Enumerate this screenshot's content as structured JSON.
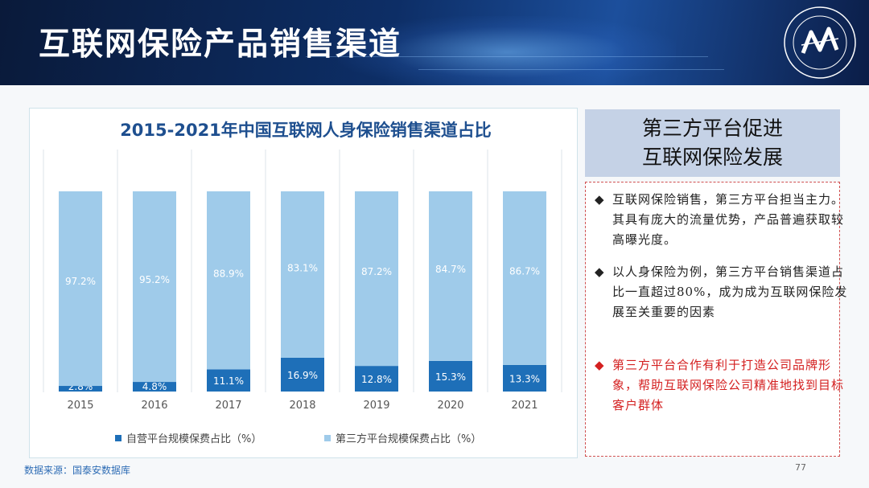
{
  "page": {
    "title": "互联网保险产品销售渠道",
    "source": "数据来源：国泰安数据库",
    "page_number": "77"
  },
  "colors": {
    "self_operated": "#1e6fb8",
    "third_party": "#9fcbea",
    "accent_red": "#d42020"
  },
  "chart_data": {
    "type": "bar",
    "stacked": true,
    "percent": true,
    "title": "2015-2021年中国互联网人身保险销售渠道占比",
    "categories": [
      "2015",
      "2016",
      "2017",
      "2018",
      "2019",
      "2020",
      "2021"
    ],
    "series": [
      {
        "name": "自营平台规模保费占比（%）",
        "values": [
          2.8,
          4.8,
          11.1,
          16.9,
          12.8,
          15.3,
          13.3
        ],
        "labels": [
          "2.8%",
          "4.8%",
          "11.1%",
          "16.9%",
          "12.8%",
          "15.3%",
          "13.3%"
        ]
      },
      {
        "name": "第三方平台规模保费占比（%）",
        "values": [
          97.2,
          95.2,
          88.9,
          83.1,
          87.2,
          84.7,
          86.7
        ],
        "labels": [
          "97.2%",
          "95.2%",
          "88.9%",
          "83.1%",
          "87.2%",
          "84.7%",
          "86.7%"
        ]
      }
    ],
    "ylim": [
      0,
      100
    ],
    "legend": "bottom"
  },
  "sidebar": {
    "heading_line1": "第三方平台促进",
    "heading_line2": "互联网保险发展",
    "bullets": [
      {
        "marker": "◆",
        "text": "互联网保险销售，第三方平台担当主力。其具有庞大的流量优势，产品普遍获取较高曝光度。"
      },
      {
        "marker": "◆",
        "text": "以人身保险为例，第三方平台销售渠道占比一直超过80%，成为成为互联网保险发展至关重要的因素"
      },
      {
        "marker": "◆",
        "text": "第三方平台合作有利于打造公司品牌形象，帮助互联网保险公司精准地找到目标客户群体"
      }
    ]
  }
}
